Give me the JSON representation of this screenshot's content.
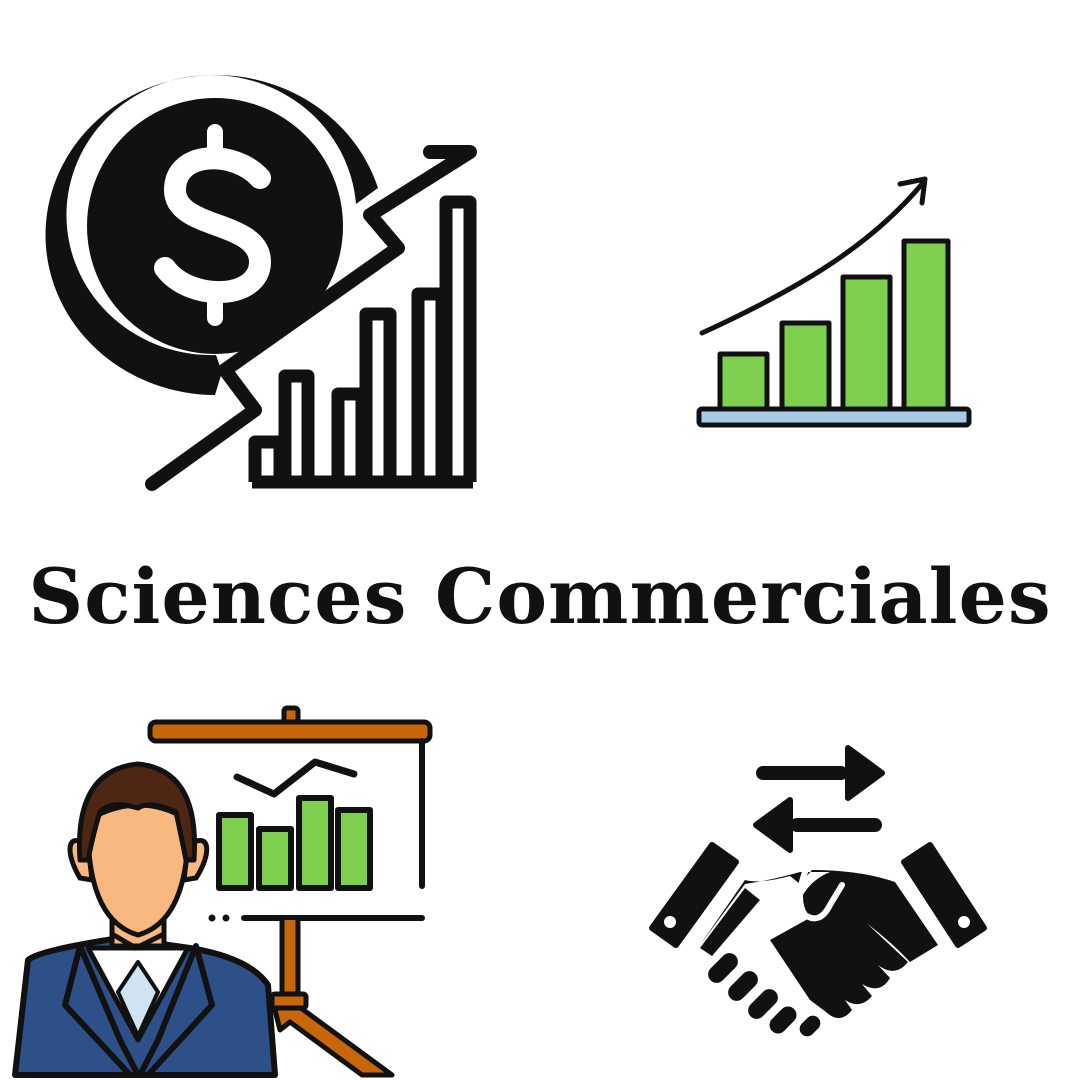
{
  "title": "Sciences Commerciales",
  "colors": {
    "ink": "#111111",
    "green": "#7ecf4e",
    "skin": "#f9b880",
    "hair": "#4d2614",
    "suit": "#2e5088",
    "shirt": "#cfe3f2",
    "board_brown": "#c8660c",
    "base_blue": "#a9cbe8"
  },
  "icons": [
    {
      "name": "dollar-growth-icon"
    },
    {
      "name": "growth-bar-chart-icon"
    },
    {
      "name": "presenter-board-icon"
    },
    {
      "name": "handshake-exchange-icon"
    }
  ]
}
